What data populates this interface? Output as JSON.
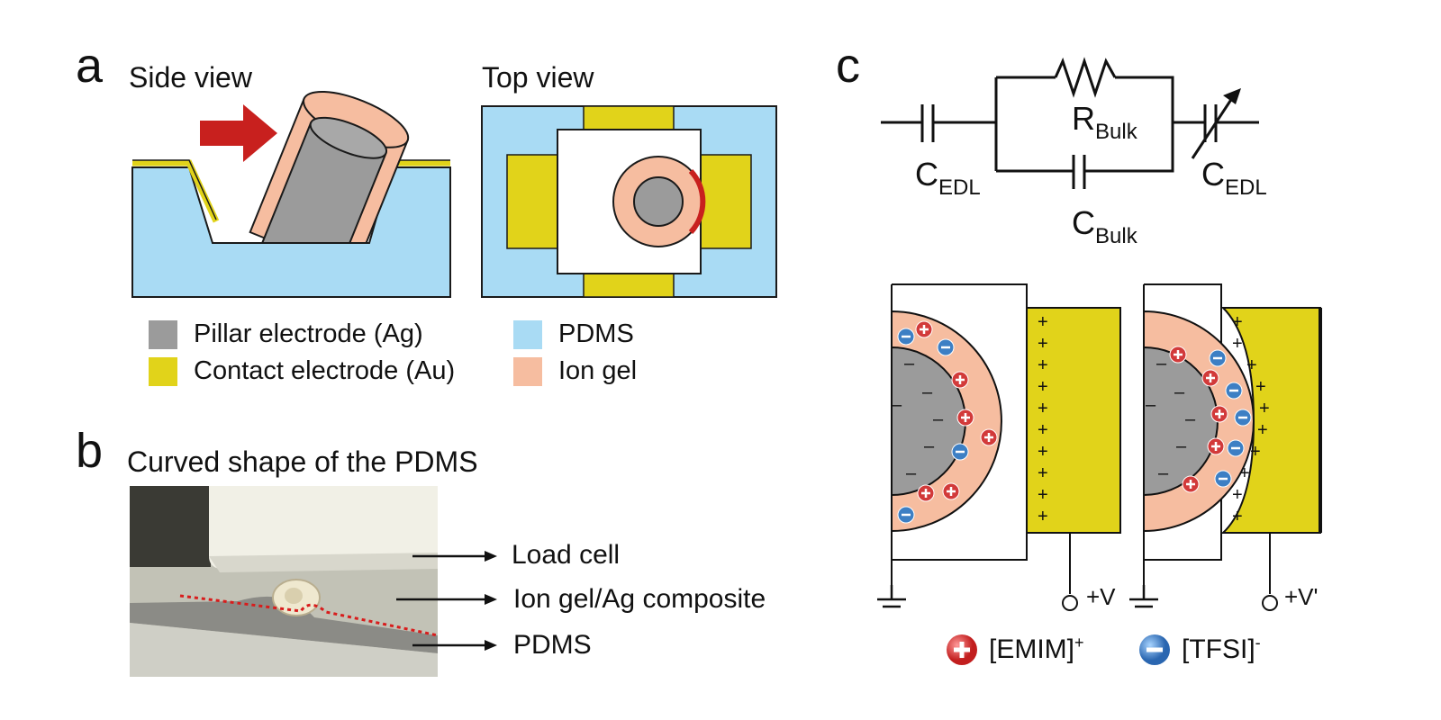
{
  "panel_a": {
    "letter": "a",
    "side_title": "Side view",
    "top_title": "Top view",
    "legend": [
      {
        "label": "Pillar electrode (Ag)",
        "color": "#9b9b9b"
      },
      {
        "label": "Contact electrode (Au)",
        "color": "#e1d31a"
      },
      {
        "label": "PDMS",
        "color": "#a9dbf4"
      },
      {
        "label": "Ion gel",
        "color": "#f6bda0"
      }
    ]
  },
  "panel_b": {
    "letter": "b",
    "title": "Curved shape of the PDMS",
    "labels": [
      "Load cell",
      "Ion gel/Ag composite",
      "PDMS"
    ]
  },
  "panel_c": {
    "letter": "c",
    "circuit": {
      "cedl_left": {
        "main": "C",
        "sub": "EDL"
      },
      "rbulk": {
        "main": "R",
        "sub": "Bulk"
      },
      "cbulk": {
        "main": "C",
        "sub": "Bulk"
      },
      "cedl_right": {
        "main": "C",
        "sub": "EDL"
      }
    },
    "voltage_left": "+V",
    "voltage_right": "+V'",
    "legend": [
      {
        "label": "[EMIM]",
        "sup": "+",
        "icon": "cation-icon",
        "color": "#d23a3a"
      },
      {
        "label": "[TFSI]",
        "sup": "-",
        "icon": "anion-icon",
        "color": "#3d7fc4"
      }
    ]
  },
  "colors": {
    "pdms": "#a9dbf4",
    "gold": "#e1d31a",
    "iongel": "#f6bda0",
    "silver": "#9b9b9b",
    "arrow": "#c8201e"
  }
}
